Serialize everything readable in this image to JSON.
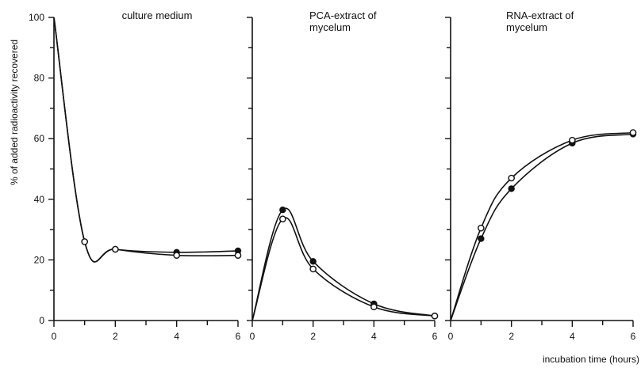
{
  "ylabel": "% of added radioactivity recovered",
  "xlabel": "incubation time (hours)",
  "chart_data": [
    {
      "type": "line",
      "title": [
        "culture medium"
      ],
      "xlim": [
        0,
        6
      ],
      "ylim": [
        0,
        100
      ],
      "x_ticks": [
        "0",
        "2",
        "4",
        "6"
      ],
      "y_ticks": [
        "0",
        "20",
        "40",
        "60",
        "80",
        "100"
      ],
      "series": [
        {
          "marker": "filled",
          "x": [
            0,
            1,
            2,
            4,
            6
          ],
          "y": [
            100,
            26,
            23.5,
            22.5,
            23
          ]
        },
        {
          "marker": "open",
          "x": [
            0,
            1,
            2,
            4,
            6
          ],
          "y": [
            100,
            26,
            23.5,
            21.5,
            21.5
          ]
        }
      ]
    },
    {
      "type": "line",
      "title": [
        "PCA-extract of",
        "mycelum"
      ],
      "xlim": [
        0,
        6
      ],
      "ylim": [
        0,
        100
      ],
      "x_ticks": [
        "0",
        "2",
        "4",
        "6"
      ],
      "series": [
        {
          "marker": "filled",
          "x": [
            0,
            1,
            2,
            4,
            6
          ],
          "y": [
            0,
            36.5,
            19.5,
            5.5,
            1.5
          ]
        },
        {
          "marker": "open",
          "x": [
            0,
            1,
            2,
            4,
            6
          ],
          "y": [
            0,
            33.5,
            17,
            4.5,
            1.5
          ]
        }
      ]
    },
    {
      "type": "line",
      "title": [
        "RNA-extract of",
        "mycelum"
      ],
      "xlim": [
        0,
        6
      ],
      "ylim": [
        0,
        100
      ],
      "x_ticks": [
        "0",
        "2",
        "4",
        "6"
      ],
      "series": [
        {
          "marker": "filled",
          "x": [
            0,
            1,
            2,
            4,
            6
          ],
          "y": [
            0,
            27,
            43.5,
            58.5,
            61.5
          ]
        },
        {
          "marker": "open",
          "x": [
            0,
            1,
            2,
            4,
            6
          ],
          "y": [
            0,
            30.5,
            47,
            59.5,
            62
          ]
        }
      ]
    }
  ]
}
